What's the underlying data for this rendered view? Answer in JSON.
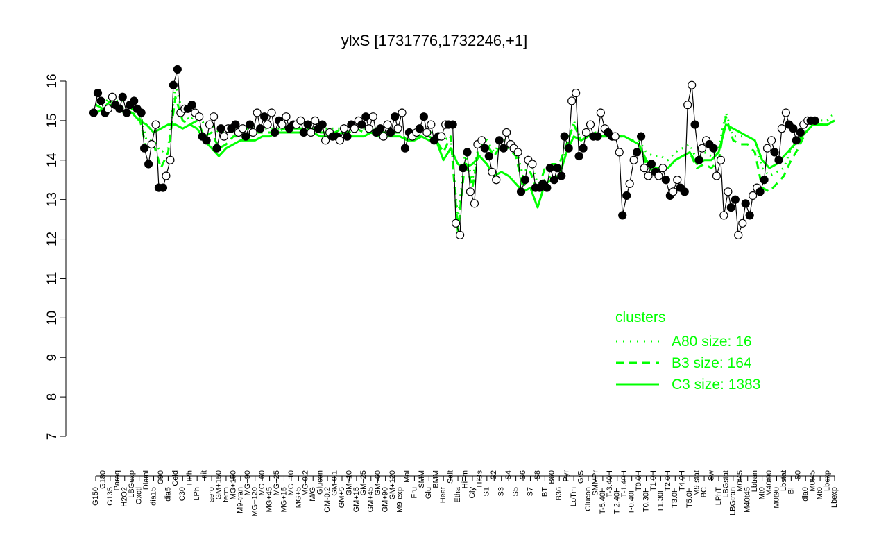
{
  "chart_data": {
    "type": "line",
    "title": "ylxS [1731776,1732246,+1]",
    "xlabel": "",
    "ylabel": "",
    "ylim": [
      7,
      16
    ],
    "y_ticks": [
      "7",
      "8",
      "9",
      "10",
      "11",
      "12",
      "13",
      "14",
      "15",
      "16"
    ],
    "x_tick_labels": [
      "G150",
      "G180",
      "G135",
      "Paraq",
      "H2O2",
      "LBGexp",
      "Oxctl",
      "Diami",
      "dia15",
      "C90",
      "dia5",
      "Cold",
      "C30",
      "HPh",
      "LPh",
      "nit",
      "aero",
      "GM+150",
      "ferm",
      "MG+150",
      "M9-tran",
      "MG+90",
      "MG+120",
      "MG+60",
      "MG+45",
      "MG+25",
      "MG+15",
      "MG+10",
      "MG+5",
      "MG-0.2",
      "M/G",
      "Glucon",
      "GM-0.2",
      "GM-0.1",
      "GM+5",
      "GM+10",
      "GM+15",
      "GM+25",
      "GM+45",
      "GM+60",
      "GM+90",
      "GM+120",
      "M9-exp",
      "Mal",
      "Fru",
      "SMM",
      "Glu",
      "BMM",
      "Heat",
      "Salt",
      "Etha",
      "HiTm",
      "Gly",
      "HiOs",
      "S1",
      "S2",
      "S3",
      "S4",
      "S5",
      "S6",
      "S7",
      "S8",
      "BT",
      "B60",
      "B36",
      "Pyr",
      "LoTm",
      "G/S",
      "Glucon",
      "SMMPr",
      "T-5.40H",
      "T-3.40H",
      "T-2.40H",
      "T-1.40H",
      "T-0.40H",
      "T0.0H",
      "T0.30H",
      "T1.0H",
      "T1.30H",
      "T2.0H",
      "T3.0H",
      "T4.0H",
      "T5.0H",
      "M9-stat",
      "BC",
      "Sw",
      "LPhT",
      "LBGstat",
      "LBGtran",
      "M0t45",
      "M40t45",
      "Lbtran",
      "Mt0",
      "M40t90",
      "M0t90",
      "Lbstat",
      "BI",
      "S0",
      "dia0",
      "M0t45",
      "Mt0",
      "Lbexp",
      "Lbexp"
    ],
    "series": [
      {
        "name": "A80 size: 16",
        "style": "dotted",
        "color": "#00ff00",
        "values": [
          15.4,
          15.4,
          15.6,
          15.5,
          15.5,
          15.3,
          15.3,
          14.5,
          14.5,
          14.2,
          14.3,
          15.9,
          15.2,
          15.0,
          15.2,
          14.9,
          14.9,
          14.7,
          14.7,
          14.8,
          14.8,
          14.8,
          14.8,
          14.8,
          14.8,
          14.8,
          14.8,
          14.9,
          14.8,
          14.8,
          14.8,
          14.8,
          14.8,
          14.8,
          14.8,
          14.8,
          14.8,
          14.8,
          14.8,
          14.8,
          14.8,
          14.8,
          14.8,
          14.7,
          14.7,
          14.7,
          14.7,
          14.7,
          14.5,
          14.6,
          12.5,
          14.2,
          13.5,
          14.5,
          14.5,
          14.2,
          14.5,
          14.5,
          14.3,
          13.6,
          14.0,
          13.4,
          13.5,
          13.6,
          13.6,
          14.3,
          15.0,
          14.5,
          14.6,
          14.7,
          14.6,
          14.6,
          14.6,
          14.6,
          14.5,
          14.5,
          14.2,
          14.1,
          14.1,
          14.0,
          14.2,
          14.3,
          14.4,
          14.0,
          14.2,
          14.1,
          14.3,
          15.2,
          14.6,
          14.6,
          14.6,
          14.5,
          13.8,
          13.6,
          13.7,
          13.8,
          14.3,
          14.4,
          14.9,
          15.0,
          15.0,
          15.0,
          15.2
        ]
      },
      {
        "name": "B3 size: 164",
        "style": "dashed",
        "color": "#00ff00",
        "values": [
          15.4,
          15.3,
          15.5,
          15.4,
          15.3,
          15.2,
          15.1,
          14.3,
          14.4,
          13.8,
          14.2,
          15.6,
          15.0,
          14.9,
          15.0,
          14.6,
          14.7,
          14.3,
          14.4,
          14.6,
          14.6,
          14.6,
          14.7,
          14.7,
          14.7,
          14.7,
          14.8,
          14.8,
          14.8,
          14.8,
          14.8,
          14.7,
          14.7,
          14.7,
          14.8,
          14.7,
          14.8,
          14.7,
          14.8,
          14.7,
          14.7,
          14.7,
          14.7,
          14.5,
          14.6,
          14.6,
          14.6,
          14.5,
          14.2,
          14.6,
          12.2,
          14.0,
          13.3,
          14.4,
          14.4,
          14.1,
          14.4,
          14.3,
          14.1,
          13.3,
          13.7,
          13.2,
          13.8,
          13.9,
          13.9,
          14.4,
          14.9,
          14.5,
          14.6,
          14.7,
          14.6,
          14.6,
          14.6,
          14.6,
          14.5,
          14.4,
          13.9,
          13.7,
          13.8,
          13.8,
          14.0,
          14.1,
          14.2,
          13.8,
          13.9,
          13.8,
          14.0,
          15.1,
          14.5,
          14.4,
          14.4,
          14.2,
          13.3,
          13.2,
          13.4,
          13.6,
          14.0,
          14.3,
          14.7,
          14.9,
          14.9,
          14.9,
          15.0
        ]
      },
      {
        "name": "C3 size: 1383",
        "style": "solid",
        "color": "#00ff00",
        "values": [
          15.2,
          15.3,
          15.4,
          15.3,
          15.2,
          15.2,
          15.0,
          14.9,
          14.7,
          14.8,
          14.9,
          14.9,
          14.8,
          14.9,
          14.8,
          14.5,
          14.3,
          14.1,
          14.3,
          14.4,
          14.5,
          14.5,
          14.5,
          14.6,
          14.6,
          14.7,
          14.7,
          14.7,
          14.7,
          14.7,
          14.7,
          14.6,
          14.6,
          14.6,
          14.7,
          14.6,
          14.6,
          14.6,
          14.7,
          14.6,
          14.6,
          14.6,
          14.6,
          14.5,
          14.5,
          14.6,
          14.5,
          14.5,
          14.0,
          14.3,
          13.9,
          13.8,
          13.9,
          14.1,
          13.9,
          13.6,
          13.7,
          13.6,
          13.4,
          13.2,
          13.3,
          12.8,
          13.4,
          13.5,
          13.6,
          14.2,
          14.6,
          14.5,
          14.6,
          14.6,
          14.6,
          14.6,
          14.6,
          14.6,
          14.5,
          14.4,
          14.0,
          13.8,
          13.8,
          13.8,
          14.0,
          14.1,
          14.2,
          13.9,
          14.0,
          14.0,
          14.2,
          14.9,
          14.8,
          14.7,
          14.6,
          14.5,
          14.0,
          13.8,
          13.9,
          14.1,
          14.3,
          14.5,
          14.7,
          14.9,
          14.9,
          14.9,
          15.0
        ]
      }
    ],
    "observed": {
      "name": "ylxS",
      "color": "#000000",
      "filled": [
        true,
        true,
        false,
        true,
        true,
        true,
        true,
        true,
        false,
        true,
        false,
        true,
        false,
        true,
        false,
        true,
        false,
        true,
        false,
        true,
        false,
        true,
        false,
        true,
        false,
        true,
        false,
        true,
        false,
        true,
        false,
        true,
        false,
        true,
        false,
        true,
        false,
        true,
        false,
        true,
        false,
        true,
        false,
        true,
        false,
        true,
        false,
        true,
        false,
        true,
        false,
        true,
        false,
        false,
        true,
        false,
        true,
        false,
        false,
        true,
        false,
        true,
        true,
        true,
        true,
        true,
        false,
        true,
        false,
        true,
        false,
        true,
        false,
        true,
        false,
        true,
        false,
        true,
        false,
        true,
        false,
        true,
        false,
        true,
        false,
        true,
        false,
        false,
        true,
        false,
        true,
        false,
        true,
        false,
        true,
        false,
        true,
        true,
        false,
        true,
        false,
        true,
        false,
        true,
        false,
        true,
        false
      ],
      "points": [
        [
          15.2,
          15.7
        ],
        [
          15.5,
          15.2
        ],
        [
          15.3,
          15.6
        ],
        [
          15.4,
          15.3
        ],
        [
          15.6,
          15.2
        ],
        [
          15.4,
          15.5
        ],
        [
          15.3,
          15.2
        ],
        [
          14.3,
          13.9
        ],
        [
          14.4,
          14.9
        ],
        [
          13.3,
          13.3
        ],
        [
          13.6,
          14.0
        ],
        [
          15.9,
          16.3
        ],
        [
          15.2,
          15.3
        ],
        [
          15.3,
          15.4
        ],
        [
          15.2,
          15.1
        ],
        [
          14.6,
          14.5
        ],
        [
          14.9,
          15.1
        ],
        [
          14.3,
          14.8
        ],
        [
          14.6,
          14.8
        ],
        [
          14.8,
          14.9
        ],
        [
          14.7,
          14.8
        ],
        [
          14.6,
          14.9
        ],
        [
          14.7,
          15.2
        ],
        [
          14.8,
          15.1
        ],
        [
          14.9,
          15.2
        ],
        [
          14.7,
          15.0
        ],
        [
          14.9,
          15.1
        ],
        [
          14.8,
          14.9
        ],
        [
          14.9,
          15.0
        ],
        [
          14.7,
          14.9
        ],
        [
          14.7,
          15.0
        ],
        [
          14.8,
          14.9
        ],
        [
          14.5,
          14.7
        ],
        [
          14.6,
          14.6
        ],
        [
          14.5,
          14.8
        ],
        [
          14.6,
          14.9
        ],
        [
          14.8,
          15.0
        ],
        [
          14.9,
          15.1
        ],
        [
          14.8,
          15.1
        ],
        [
          14.7,
          14.8
        ],
        [
          14.6,
          14.9
        ],
        [
          14.7,
          15.1
        ],
        [
          14.8,
          15.2
        ],
        [
          14.3,
          14.7
        ],
        [
          14.6,
          14.7
        ],
        [
          14.8,
          15.1
        ],
        [
          14.7,
          14.9
        ],
        [
          14.5,
          14.6
        ],
        [
          14.6,
          14.9
        ],
        [
          14.9,
          14.9
        ],
        [
          12.4,
          12.1
        ],
        [
          13.8,
          14.2
        ],
        [
          13.2,
          12.9
        ],
        [
          14.4,
          14.5
        ],
        [
          14.3,
          14.1
        ],
        [
          13.7,
          13.5
        ],
        [
          14.5,
          14.3
        ],
        [
          14.7,
          14.4
        ],
        [
          14.3,
          14.2
        ],
        [
          13.2,
          13.5
        ],
        [
          14.0,
          13.9
        ],
        [
          13.3,
          13.3
        ],
        [
          13.4,
          13.3
        ],
        [
          13.8,
          13.5
        ],
        [
          13.8,
          13.6
        ],
        [
          14.6,
          14.3
        ],
        [
          15.5,
          15.7
        ],
        [
          14.1,
          14.3
        ],
        [
          14.7,
          14.9
        ],
        [
          14.6,
          14.6
        ],
        [
          15.2,
          14.8
        ],
        [
          14.7,
          14.6
        ],
        [
          14.6,
          14.2
        ],
        [
          12.6,
          13.1
        ],
        [
          13.4,
          14.0
        ],
        [
          14.2,
          14.6
        ],
        [
          13.8,
          13.6
        ],
        [
          13.9,
          13.7
        ],
        [
          13.6,
          13.8
        ],
        [
          13.5,
          13.1
        ],
        [
          13.2,
          13.5
        ],
        [
          13.3,
          13.2
        ],
        [
          15.4,
          15.9
        ],
        [
          14.9,
          14.0
        ],
        [
          14.3,
          14.5
        ],
        [
          14.4,
          14.3
        ],
        [
          13.6,
          14.0
        ],
        [
          12.6,
          13.2
        ],
        [
          12.8,
          13.0
        ],
        [
          12.1,
          12.4
        ],
        [
          12.9,
          12.6
        ],
        [
          13.1,
          13.3
        ],
        [
          13.2,
          13.5
        ],
        [
          14.3,
          14.5
        ],
        [
          14.2,
          14.0
        ],
        [
          14.8,
          15.2
        ],
        [
          14.9,
          14.8
        ],
        [
          14.5,
          14.7
        ],
        [
          14.9,
          15.0
        ],
        [
          15.0,
          15.0
        ]
      ]
    },
    "legend": {
      "title": "clusters",
      "placement": "bottom-right",
      "entries": [
        "A80 size: 16",
        "B3 size: 164",
        "C3 size: 1383"
      ]
    }
  }
}
